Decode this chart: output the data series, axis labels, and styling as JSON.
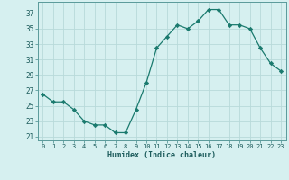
{
  "x": [
    0,
    1,
    2,
    3,
    4,
    5,
    6,
    7,
    8,
    9,
    10,
    11,
    12,
    13,
    14,
    15,
    16,
    17,
    18,
    19,
    20,
    21,
    22,
    23
  ],
  "y": [
    26.5,
    25.5,
    25.5,
    24.5,
    23.0,
    22.5,
    22.5,
    21.5,
    21.5,
    24.5,
    28.0,
    32.5,
    34.0,
    35.5,
    35.0,
    36.0,
    37.5,
    37.5,
    35.5,
    35.5,
    35.0,
    32.5,
    30.5,
    29.5
  ],
  "line_color": "#1a7a6e",
  "marker": "D",
  "marker_size": 2.2,
  "bg_color": "#d6f0f0",
  "grid_color": "#b8dada",
  "xlabel": "Humidex (Indice chaleur)",
  "ylabel_ticks": [
    21,
    23,
    25,
    27,
    29,
    31,
    33,
    35,
    37
  ],
  "xtick_labels": [
    "0",
    "1",
    "2",
    "3",
    "4",
    "5",
    "6",
    "7",
    "8",
    "9",
    "1011",
    "12",
    "13",
    "14",
    "15",
    "16",
    "17",
    "18",
    "19",
    "20",
    "21",
    "2223"
  ],
  "xlim": [
    -0.5,
    23.5
  ],
  "ylim": [
    20.5,
    38.5
  ]
}
